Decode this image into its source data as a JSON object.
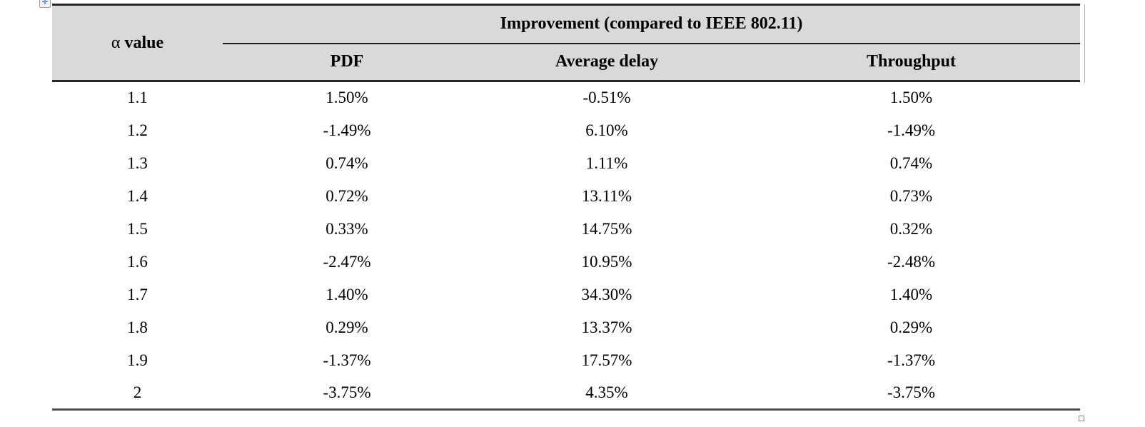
{
  "colors": {
    "header_bg": "#d9d9d9",
    "border_dark": "#262626",
    "border_bottom_col": "#4f4f4f",
    "handle_blue": "#2e5bd7"
  },
  "icons": {
    "move_glyph": "✛"
  },
  "table": {
    "alpha_header": {
      "symbol": "α",
      "label": " value"
    },
    "span_header": "Improvement (compared to IEEE 802.11)",
    "sub_headers": [
      "PDF",
      "Average delay",
      "Throughput"
    ],
    "rows": [
      [
        "1.1",
        "1.50%",
        "-0.51%",
        "1.50%"
      ],
      [
        "1.2",
        "-1.49%",
        "6.10%",
        "-1.49%"
      ],
      [
        "1.3",
        "0.74%",
        "1.11%",
        "0.74%"
      ],
      [
        "1.4",
        "0.72%",
        "13.11%",
        "0.73%"
      ],
      [
        "1.5",
        "0.33%",
        "14.75%",
        "0.32%"
      ],
      [
        "1.6",
        "-2.47%",
        "10.95%",
        "-2.48%"
      ],
      [
        "1.7",
        "1.40%",
        "34.30%",
        "1.40%"
      ],
      [
        "1.8",
        "0.29%",
        "13.37%",
        "0.29%"
      ],
      [
        "1.9",
        "-1.37%",
        "17.57%",
        "-1.37%"
      ],
      [
        "2",
        "-3.75%",
        "4.35%",
        "-3.75%"
      ]
    ]
  },
  "chart_data": {
    "type": "table",
    "title": "Improvement (compared to IEEE 802.11)",
    "columns": [
      "α value",
      "PDF",
      "Average delay",
      "Throughput"
    ],
    "rows": [
      [
        1.1,
        "1.50%",
        "-0.51%",
        "1.50%"
      ],
      [
        1.2,
        "-1.49%",
        "6.10%",
        "-1.49%"
      ],
      [
        1.3,
        "0.74%",
        "1.11%",
        "0.74%"
      ],
      [
        1.4,
        "0.72%",
        "13.11%",
        "0.73%"
      ],
      [
        1.5,
        "0.33%",
        "14.75%",
        "0.32%"
      ],
      [
        1.6,
        "-2.47%",
        "10.95%",
        "-2.48%"
      ],
      [
        1.7,
        "1.40%",
        "34.30%",
        "1.40%"
      ],
      [
        1.8,
        "0.29%",
        "13.37%",
        "0.29%"
      ],
      [
        1.9,
        "-1.37%",
        "17.57%",
        "-1.37%"
      ],
      [
        2,
        "-3.75%",
        "4.35%",
        "-3.75%"
      ]
    ]
  }
}
